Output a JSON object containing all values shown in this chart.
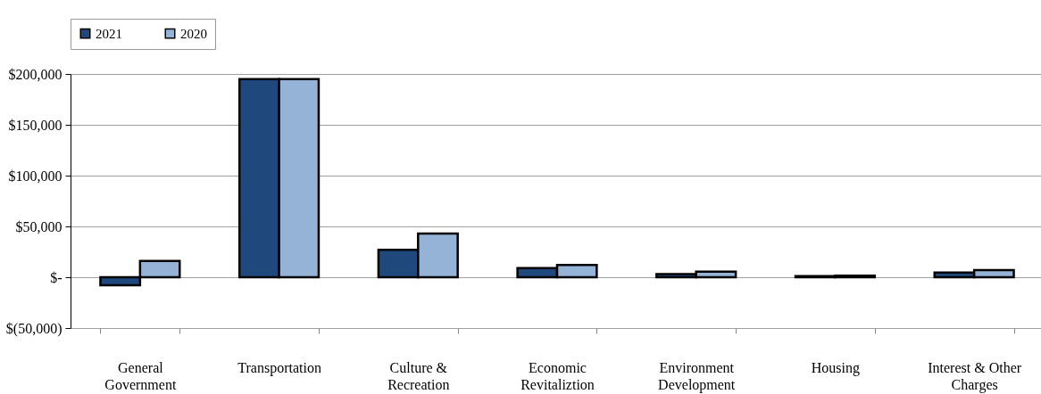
{
  "chart_data": {
    "type": "bar",
    "categories": [
      "General Government",
      "Transportation",
      "Culture & Recreation",
      "Economic Revitaliztion",
      "Environment Development",
      "Housing",
      "Interest & Other Charges"
    ],
    "series": [
      {
        "name": "2021",
        "color": "#1f497d",
        "values": [
          -8000,
          195000,
          27000,
          9000,
          3000,
          1000,
          4500
        ]
      },
      {
        "name": "2020",
        "color": "#95b3d7",
        "values": [
          16000,
          195000,
          43000,
          12000,
          5500,
          1500,
          7000
        ]
      }
    ],
    "ylim": [
      -50000,
      200000
    ],
    "yticks": [
      {
        "value": -50000,
        "label": "$(50,000)"
      },
      {
        "value": 0,
        "label": "$-"
      },
      {
        "value": 50000,
        "label": "$50,000"
      },
      {
        "value": 100000,
        "label": "$100,000"
      },
      {
        "value": 150000,
        "label": "$150,000"
      },
      {
        "value": 200000,
        "label": "$200,000"
      }
    ],
    "grid": "y",
    "legend": "top"
  }
}
